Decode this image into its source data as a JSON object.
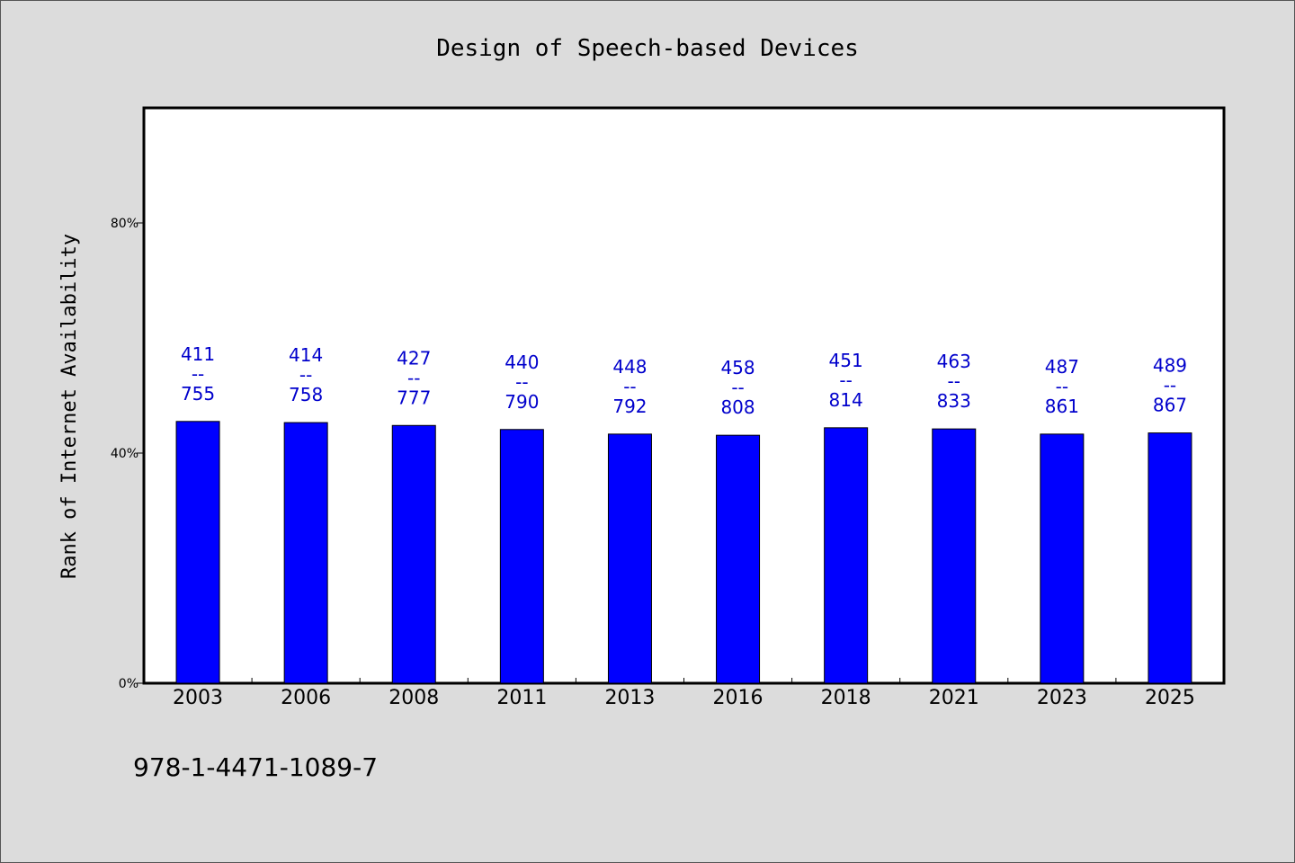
{
  "chart_data": {
    "type": "bar",
    "title": "Design of Speech-based Devices",
    "xlabel": "",
    "ylabel": "Rank of Internet Availability",
    "ylim": [
      0,
      100
    ],
    "yticks": [
      0,
      40,
      80
    ],
    "ytick_labels": [
      "0%",
      "40%",
      "80%"
    ],
    "grid": false,
    "categories": [
      "2003",
      "2006",
      "2008",
      "2011",
      "2013",
      "2016",
      "2018",
      "2021",
      "2023",
      "2025"
    ],
    "values": [
      45.5,
      45.3,
      44.8,
      44.1,
      43.3,
      43.1,
      44.4,
      44.2,
      43.3,
      43.5
    ],
    "bar_labels": [
      [
        "411",
        "--",
        "755"
      ],
      [
        "414",
        "--",
        "758"
      ],
      [
        "427",
        "--",
        "777"
      ],
      [
        "440",
        "--",
        "790"
      ],
      [
        "448",
        "--",
        "792"
      ],
      [
        "458",
        "--",
        "808"
      ],
      [
        "451",
        "--",
        "814"
      ],
      [
        "463",
        "--",
        "833"
      ],
      [
        "487",
        "--",
        "861"
      ],
      [
        "489",
        "--",
        "867"
      ]
    ],
    "bar_color": "#0000ff",
    "label_color": "#0000cc"
  },
  "footer_text": "978-1-4471-1089-7"
}
